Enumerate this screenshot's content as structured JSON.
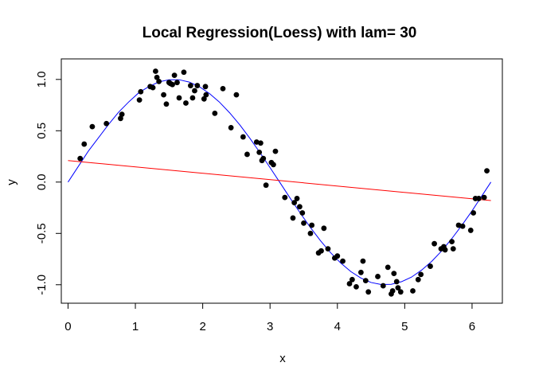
{
  "chart_data": {
    "type": "scatter",
    "title": "Local Regression(Loess) with lam= 30",
    "xlabel": "x",
    "ylabel": "y",
    "xlim": [
      -0.1,
      6.45
    ],
    "ylim": [
      -1.18,
      1.2
    ],
    "x_ticks": [
      0,
      1,
      2,
      3,
      4,
      5,
      6
    ],
    "x_tick_labels": [
      "0",
      "1",
      "2",
      "3",
      "4",
      "5",
      "6"
    ],
    "y_ticks": [
      -1.0,
      -0.5,
      0.0,
      0.5,
      1.0
    ],
    "y_tick_labels": [
      "-1.0",
      "-0.5",
      "0.0",
      "0.5",
      "1.0"
    ],
    "grid": false,
    "points": {
      "color": "#000000",
      "x": [
        0.18,
        0.24,
        0.36,
        0.57,
        0.78,
        0.8,
        1.06,
        1.08,
        1.22,
        1.26,
        1.3,
        1.32,
        1.35,
        1.42,
        1.46,
        1.5,
        1.52,
        1.55,
        1.58,
        1.62,
        1.65,
        1.72,
        1.75,
        1.82,
        1.85,
        1.88,
        1.92,
        2.02,
        2.04,
        2.05,
        2.18,
        2.3,
        2.42,
        2.5,
        2.6,
        2.66,
        2.8,
        2.84,
        2.86,
        2.88,
        2.9,
        2.94,
        3.02,
        3.05,
        3.08,
        3.22,
        3.34,
        3.36,
        3.4,
        3.44,
        3.48,
        3.5,
        3.6,
        3.62,
        3.72,
        3.76,
        3.8,
        3.86,
        3.96,
        4.0,
        4.08,
        4.18,
        4.22,
        4.28,
        4.35,
        4.38,
        4.42,
        4.46,
        4.6,
        4.68,
        4.75,
        4.8,
        4.82,
        4.84,
        4.88,
        4.9,
        4.94,
        5.12,
        5.2,
        5.24,
        5.38,
        5.44,
        5.54,
        5.58,
        5.6,
        5.7,
        5.72,
        5.8,
        5.86,
        5.98,
        6.02,
        6.05,
        6.1,
        6.18,
        6.22
      ],
      "y": [
        0.23,
        0.37,
        0.54,
        0.57,
        0.62,
        0.66,
        0.8,
        0.88,
        0.93,
        0.92,
        1.08,
        1.02,
        0.98,
        0.85,
        0.76,
        0.97,
        0.96,
        0.95,
        1.04,
        0.97,
        0.82,
        1.07,
        0.77,
        0.94,
        0.82,
        0.89,
        0.94,
        0.81,
        0.93,
        0.85,
        0.67,
        0.91,
        0.53,
        0.85,
        0.44,
        0.27,
        0.39,
        0.29,
        0.38,
        0.21,
        0.23,
        -0.03,
        0.19,
        0.17,
        0.3,
        -0.15,
        -0.35,
        -0.2,
        -0.16,
        -0.24,
        -0.3,
        -0.4,
        -0.5,
        -0.42,
        -0.69,
        -0.67,
        -0.45,
        -0.65,
        -0.74,
        -0.72,
        -0.77,
        -0.99,
        -0.95,
        -1.02,
        -0.88,
        -0.77,
        -0.96,
        -1.07,
        -0.92,
        -1.01,
        -0.83,
        -1.09,
        -1.06,
        -0.89,
        -0.97,
        -1.03,
        -1.07,
        -1.06,
        -0.95,
        -0.9,
        -0.82,
        -0.6,
        -0.65,
        -0.63,
        -0.66,
        -0.58,
        -0.65,
        -0.42,
        -0.43,
        -0.47,
        -0.3,
        -0.16,
        -0.16,
        -0.15,
        0.11
      ]
    },
    "series": [
      {
        "type": "line",
        "color": "#0000ff",
        "x": [
          0,
          0.15,
          0.3,
          0.45,
          0.6,
          0.75,
          0.9,
          1.05,
          1.2,
          1.35,
          1.5,
          1.65,
          1.8,
          1.95,
          2.1,
          2.25,
          2.4,
          2.55,
          2.7,
          2.85,
          3.0,
          3.15,
          3.3,
          3.45,
          3.6,
          3.75,
          3.9,
          4.05,
          4.2,
          4.35,
          4.5,
          4.65,
          4.8,
          4.95,
          5.1,
          5.25,
          5.4,
          5.55,
          5.7,
          5.85,
          6.0,
          6.15,
          6.28
        ],
        "y": [
          0.0,
          0.15,
          0.3,
          0.43,
          0.56,
          0.68,
          0.78,
          0.87,
          0.93,
          0.976,
          0.997,
          0.997,
          0.974,
          0.929,
          0.863,
          0.778,
          0.675,
          0.558,
          0.427,
          0.287,
          0.141,
          -0.008,
          -0.158,
          -0.303,
          -0.443,
          -0.572,
          -0.688,
          -0.789,
          -0.872,
          -0.935,
          -0.978,
          -0.998,
          -0.996,
          -0.971,
          -0.926,
          -0.858,
          -0.773,
          -0.67,
          -0.55,
          -0.42,
          -0.28,
          -0.13,
          0.0
        ]
      },
      {
        "type": "line",
        "color": "#ff0000",
        "x": [
          0,
          6.28
        ],
        "y": [
          0.21,
          -0.18
        ]
      }
    ]
  }
}
